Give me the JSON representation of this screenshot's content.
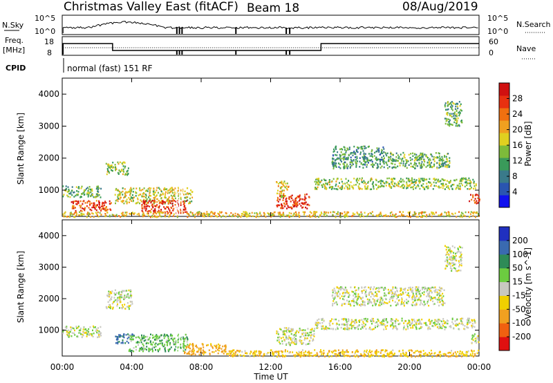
{
  "header": {
    "title": "Christmas Valley East (fitACF)",
    "beam": "Beam 18",
    "date": "08/Aug/2019"
  },
  "strips": {
    "nsky": {
      "label": "N.Sky",
      "ticks": [
        "10^5",
        "10^0"
      ],
      "right_label": "N.Search",
      "right_ticks": [
        "10^5",
        "10^0"
      ]
    },
    "freq": {
      "label_line1": "Freq.",
      "label_line2": "[MHz]",
      "ticks": [
        "18",
        "8"
      ],
      "right_label": "Nave",
      "right_ticks": [
        "60",
        "0"
      ]
    },
    "cpid": {
      "label": "CPID",
      "text": "normal (fast) 151 RF"
    }
  },
  "axes": {
    "xlabel": "Time UT",
    "ylabel": "Slant Range [km]",
    "xticks": [
      "00:00",
      "04:00",
      "08:00",
      "12:00",
      "16:00",
      "20:00",
      "00:00"
    ],
    "yticks": [
      "1000",
      "2000",
      "3000",
      "4000"
    ]
  },
  "colorbars": {
    "power": {
      "label": "Power [dB]",
      "ticks": [
        "4",
        "8",
        "12",
        "16",
        "20",
        "24",
        "28"
      ],
      "colors": [
        "#1010ee",
        "#2a55b0",
        "#3a7a8a",
        "#3a9a5a",
        "#7dbb3a",
        "#e0d020",
        "#f0a020",
        "#f07010",
        "#e83010",
        "#d01010"
      ]
    },
    "velocity": {
      "label": "Velocity [m s^-1]",
      "ticks": [
        "200",
        "100",
        "50",
        "15",
        "-15",
        "-50",
        "-100",
        "-200"
      ],
      "colors": [
        "#2030c0",
        "#3a6ab0",
        "#2e8b57",
        "#6ccc40",
        "#c8c8c0",
        "#f0d000",
        "#f0a020",
        "#f06010",
        "#e01010"
      ]
    }
  },
  "chart_data": {
    "type": "heatmap",
    "title": "Christmas Valley East (fitACF)",
    "x": {
      "label": "Time UT",
      "range_hours": [
        0,
        24
      ]
    },
    "y": {
      "label": "Slant Range [km]",
      "range_km": [
        180,
        4500
      ]
    },
    "panels": [
      {
        "name": "Power",
        "units": "dB",
        "range": [
          0,
          30
        ],
        "regions": [
          {
            "t": [
              0.0,
              2.2
            ],
            "r": [
              800,
              1150
            ],
            "value": 12
          },
          {
            "t": [
              0.5,
              2.8
            ],
            "r": [
              350,
              700
            ],
            "value": 24
          },
          {
            "t": [
              2.5,
              3.8
            ],
            "r": [
              1500,
              1900
            ],
            "value": 14
          },
          {
            "t": [
              3.0,
              7.5
            ],
            "r": [
              600,
              1100
            ],
            "value": 16
          },
          {
            "t": [
              4.5,
              7.2
            ],
            "r": [
              300,
              700
            ],
            "value": 26
          },
          {
            "t": [
              12.3,
              14.2
            ],
            "r": [
              450,
              900
            ],
            "value": 26
          },
          {
            "t": [
              12.3,
              13.0
            ],
            "r": [
              800,
              1300
            ],
            "value": 18
          },
          {
            "t": [
              14.5,
              23.8
            ],
            "r": [
              1050,
              1400
            ],
            "value": 14
          },
          {
            "t": [
              15.5,
              18.5
            ],
            "r": [
              1700,
              2400
            ],
            "value": 10
          },
          {
            "t": [
              18.5,
              22.3
            ],
            "r": [
              1700,
              2200
            ],
            "value": 12
          },
          {
            "t": [
              22.0,
              23.0
            ],
            "r": [
              3000,
              3800
            ],
            "value": 12
          },
          {
            "t": [
              23.4,
              24.0
            ],
            "r": [
              600,
              900
            ],
            "value": 26
          },
          {
            "t": [
              0.0,
              24.0
            ],
            "r": [
              180,
              350
            ],
            "value": 18
          }
        ]
      },
      {
        "name": "Velocity",
        "units": "m s^-1",
        "range": [
          -250,
          250
        ],
        "regions": [
          {
            "t": [
              0.0,
              2.2
            ],
            "r": [
              800,
              1150
            ],
            "value": 0
          },
          {
            "t": [
              2.5,
              4.0
            ],
            "r": [
              1700,
              2300
            ],
            "value": 0
          },
          {
            "t": [
              3.0,
              4.2
            ],
            "r": [
              600,
              900
            ],
            "value": 110
          },
          {
            "t": [
              3.8,
              7.2
            ],
            "r": [
              350,
              900
            ],
            "value": 40
          },
          {
            "t": [
              7.0,
              9.5
            ],
            "r": [
              250,
              600
            ],
            "value": -70
          },
          {
            "t": [
              9.5,
              24.0
            ],
            "r": [
              180,
              400
            ],
            "value": -40
          },
          {
            "t": [
              12.3,
              14.5
            ],
            "r": [
              550,
              1100
            ],
            "value": 0
          },
          {
            "t": [
              14.5,
              23.8
            ],
            "r": [
              1050,
              1400
            ],
            "value": 0
          },
          {
            "t": [
              15.5,
              22.0
            ],
            "r": [
              1800,
              2400
            ],
            "value": 0
          },
          {
            "t": [
              22.0,
              23.0
            ],
            "r": [
              2900,
              3700
            ],
            "value": 0
          },
          {
            "t": [
              23.5,
              24.0
            ],
            "r": [
              600,
              900
            ],
            "value": 0
          }
        ]
      }
    ]
  }
}
